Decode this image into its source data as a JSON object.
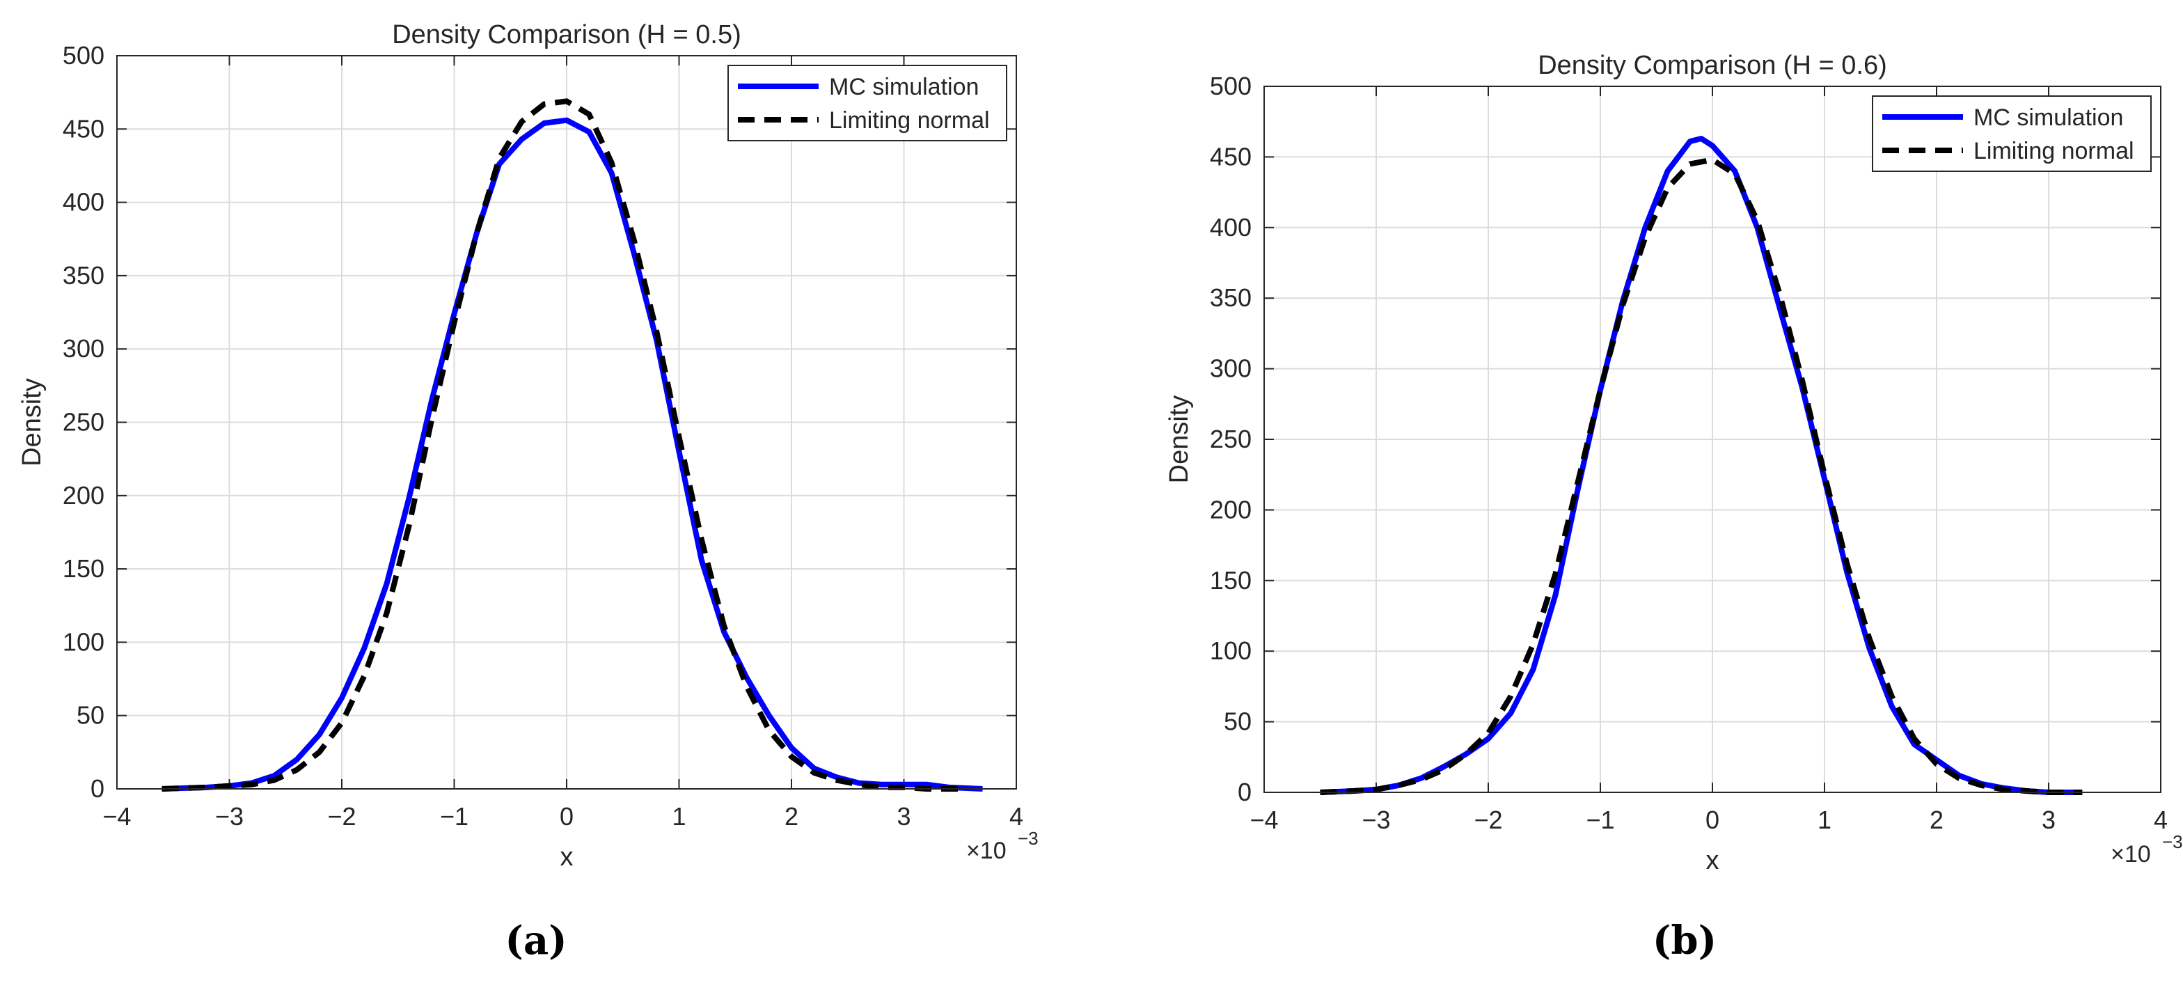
{
  "chart_data": [
    {
      "type": "line",
      "title": "Density Comparison (H = 0.5)",
      "xlabel": "x",
      "ylabel": "Density",
      "x_exponent_label": "×10",
      "x_exponent": "−3",
      "xlim": [
        -4,
        4
      ],
      "ylim": [
        0,
        500
      ],
      "xticks": [
        -4,
        -3,
        -2,
        -1,
        0,
        1,
        2,
        3,
        4
      ],
      "xtick_labels": [
        "−4",
        "−3",
        "−2",
        "−1",
        "0",
        "1",
        "2",
        "3",
        "4"
      ],
      "yticks": [
        0,
        50,
        100,
        150,
        200,
        250,
        300,
        350,
        400,
        450,
        500
      ],
      "ytick_labels": [
        "0",
        "50",
        "100",
        "150",
        "200",
        "250",
        "300",
        "350",
        "400",
        "450",
        "500"
      ],
      "grid": true,
      "legend_position": "top-right",
      "caption": "(a)",
      "series": [
        {
          "name": "MC simulation",
          "color": "#0000ff",
          "style": "solid",
          "x": [
            -3.6,
            -3.2,
            -3.0,
            -2.8,
            -2.6,
            -2.4,
            -2.2,
            -2.0,
            -1.8,
            -1.6,
            -1.4,
            -1.2,
            -1.0,
            -0.8,
            -0.6,
            -0.4,
            -0.2,
            0.0,
            0.2,
            0.4,
            0.6,
            0.8,
            1.0,
            1.2,
            1.4,
            1.6,
            1.8,
            2.0,
            2.2,
            2.4,
            2.6,
            2.8,
            3.0,
            3.2,
            3.4,
            3.7
          ],
          "y": [
            0,
            1,
            2,
            4,
            9,
            20,
            37,
            62,
            96,
            140,
            199,
            265,
            324,
            379,
            426,
            443,
            454,
            456,
            448,
            420,
            365,
            306,
            230,
            156,
            107,
            76,
            50,
            28,
            14,
            8,
            4,
            3,
            3,
            3,
            1,
            0
          ]
        },
        {
          "name": "Limiting normal",
          "color": "#000000",
          "style": "dashed",
          "x": [
            -3.6,
            -3.2,
            -3.0,
            -2.8,
            -2.6,
            -2.4,
            -2.2,
            -2.0,
            -1.8,
            -1.6,
            -1.4,
            -1.2,
            -1.0,
            -0.8,
            -0.6,
            -0.4,
            -0.2,
            0.0,
            0.2,
            0.4,
            0.6,
            0.8,
            1.0,
            1.2,
            1.4,
            1.6,
            1.8,
            2.0,
            2.2,
            2.4,
            2.6,
            2.8,
            3.0,
            3.2,
            3.5
          ],
          "y": [
            0,
            1,
            2,
            3,
            6,
            13,
            25,
            45,
            77,
            120,
            180,
            252,
            318,
            379,
            430,
            455,
            467,
            469,
            460,
            427,
            374,
            312,
            240,
            170,
            111,
            70,
            40,
            22,
            11,
            6,
            3,
            1,
            1,
            0,
            0
          ]
        }
      ]
    },
    {
      "type": "line",
      "title": "Density Comparison (H = 0.6)",
      "xlabel": "x",
      "ylabel": "Density",
      "x_exponent_label": "×10",
      "x_exponent": "−3",
      "xlim": [
        -4,
        4
      ],
      "ylim": [
        0,
        500
      ],
      "xticks": [
        -4,
        -3,
        -2,
        -1,
        0,
        1,
        2,
        3,
        4
      ],
      "xtick_labels": [
        "−4",
        "−3",
        "−2",
        "−1",
        "0",
        "1",
        "2",
        "3",
        "4"
      ],
      "yticks": [
        0,
        50,
        100,
        150,
        200,
        250,
        300,
        350,
        400,
        450,
        500
      ],
      "ytick_labels": [
        "0",
        "50",
        "100",
        "150",
        "200",
        "250",
        "300",
        "350",
        "400",
        "450",
        "500"
      ],
      "grid": true,
      "legend_position": "top-right",
      "caption": "(b)",
      "series": [
        {
          "name": "MC simulation",
          "color": "#0000ff",
          "style": "solid",
          "x": [
            -3.5,
            -3.2,
            -3.0,
            -2.8,
            -2.6,
            -2.4,
            -2.2,
            -2.0,
            -1.8,
            -1.6,
            -1.4,
            -1.2,
            -1.0,
            -0.8,
            -0.6,
            -0.4,
            -0.2,
            -0.1,
            0.0,
            0.2,
            0.4,
            0.6,
            0.8,
            1.0,
            1.2,
            1.4,
            1.6,
            1.8,
            2.0,
            2.2,
            2.4,
            2.6,
            2.8,
            3.0,
            3.3
          ],
          "y": [
            0,
            1,
            2,
            5,
            10,
            18,
            27,
            38,
            56,
            87,
            140,
            215,
            285,
            348,
            400,
            440,
            461,
            463,
            458,
            440,
            400,
            343,
            287,
            222,
            156,
            102,
            61,
            34,
            23,
            12,
            6,
            3,
            1,
            0,
            0
          ]
        },
        {
          "name": "Limiting normal",
          "color": "#000000",
          "style": "dashed",
          "x": [
            -3.5,
            -3.2,
            -3.0,
            -2.8,
            -2.6,
            -2.4,
            -2.2,
            -2.0,
            -1.8,
            -1.6,
            -1.4,
            -1.2,
            -1.0,
            -0.8,
            -0.6,
            -0.4,
            -0.2,
            0.0,
            0.2,
            0.4,
            0.6,
            0.8,
            1.0,
            1.2,
            1.4,
            1.6,
            1.8,
            2.0,
            2.2,
            2.4,
            2.6,
            2.8,
            3.0,
            3.3
          ],
          "y": [
            0,
            1,
            2,
            5,
            9,
            16,
            27,
            42,
            68,
            105,
            155,
            220,
            285,
            345,
            393,
            428,
            445,
            448,
            438,
            405,
            353,
            292,
            225,
            162,
            109,
            68,
            38,
            20,
            10,
            5,
            2,
            1,
            0,
            0
          ]
        }
      ]
    }
  ]
}
